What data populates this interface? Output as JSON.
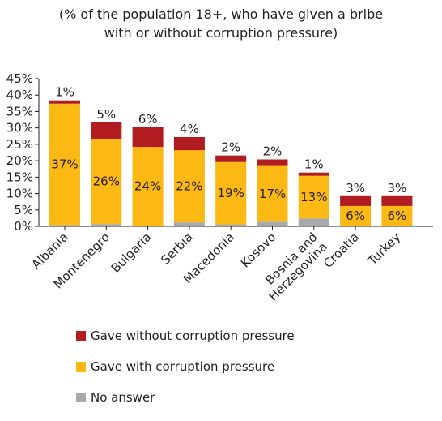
{
  "subtitle_lines": [
    "(% of the population 18+, who have given a bribe",
    "with or without corruption pressure)"
  ],
  "colors": {
    "without_pressure": "#b01c20",
    "with_pressure": "#fdb913",
    "no_answer": "#a7a9ac",
    "axis": "#231f20"
  },
  "chart_data": {
    "type": "bar",
    "stacked": true,
    "title": "(% of the population 18+, who have given a bribe with or without corruption pressure)",
    "xlabel": "",
    "ylabel": "",
    "ylim": [
      0,
      45
    ],
    "yticks": [
      0,
      5,
      10,
      15,
      20,
      25,
      30,
      35,
      40,
      45
    ],
    "ytick_labels": [
      "0%",
      "5%",
      "10%",
      "15%",
      "20%",
      "25%",
      "30%",
      "35%",
      "40%",
      "45%"
    ],
    "grid": false,
    "legend_position": "bottom",
    "categories": [
      [
        "Albania"
      ],
      [
        "Montenegro"
      ],
      [
        "Bulgaria"
      ],
      [
        "Serbia"
      ],
      [
        "Macedonia"
      ],
      [
        "Kosovo"
      ],
      [
        "Bosnia and",
        "Herzegovina"
      ],
      [
        "Croatia"
      ],
      [
        "Turkey"
      ]
    ],
    "series": [
      {
        "name": "No answer",
        "key": "no_answer",
        "values": [
          0.4,
          0.7,
          0.2,
          1.2,
          0.6,
          1.4,
          2.4,
          0.2,
          0.2
        ],
        "labels": [
          "",
          "",
          "",
          "",
          "",
          "",
          "",
          "",
          ""
        ]
      },
      {
        "name": "Gave with corruption pressure",
        "key": "with_pressure",
        "values": [
          37,
          26,
          24,
          22,
          19,
          17,
          13,
          6,
          6
        ],
        "labels": [
          "37%",
          "26%",
          "24%",
          "22%",
          "19%",
          "17%",
          "13%",
          "6%",
          "6%"
        ]
      },
      {
        "name": "Gave without corruption pressure",
        "key": "without_pressure",
        "values": [
          1,
          5,
          6,
          4,
          2,
          2,
          1,
          3,
          3
        ],
        "labels": [
          "1%",
          "5%",
          "6%",
          "4%",
          "2%",
          "2%",
          "1%",
          "3%",
          "3%"
        ]
      }
    ]
  },
  "legend": [
    {
      "key": "without_pressure",
      "label": "Gave without corruption pressure"
    },
    {
      "key": "with_pressure",
      "label": "Gave with corruption pressure"
    },
    {
      "key": "no_answer",
      "label": "No answer"
    }
  ]
}
